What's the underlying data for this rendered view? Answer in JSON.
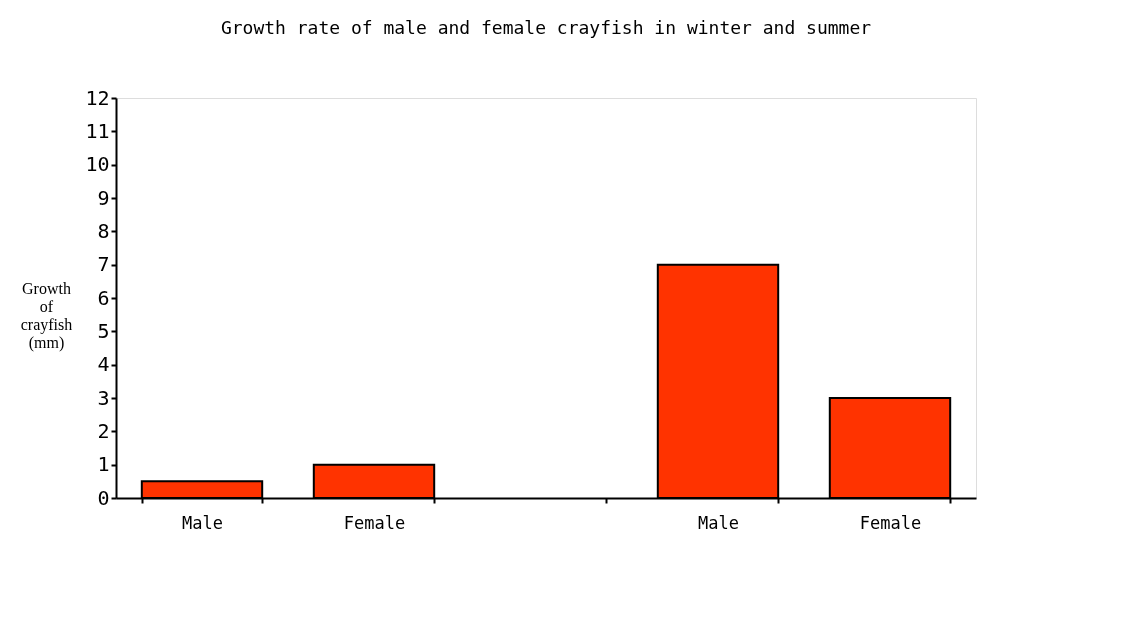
{
  "chart_data": {
    "type": "bar",
    "title": "Growth rate of male and female crayfish in winter and summer",
    "ylabel": "Growth of crayfish (mm)",
    "categories": [
      "Male",
      "Female",
      null,
      "Male",
      "Female"
    ],
    "values": [
      0.5,
      1,
      null,
      7,
      3
    ],
    "color": "#ff3300",
    "ylim": [
      0,
      12
    ],
    "yticks": [
      0,
      1,
      2,
      3,
      4,
      5,
      6,
      7,
      8,
      9,
      10,
      11,
      12
    ],
    "grid": false
  }
}
